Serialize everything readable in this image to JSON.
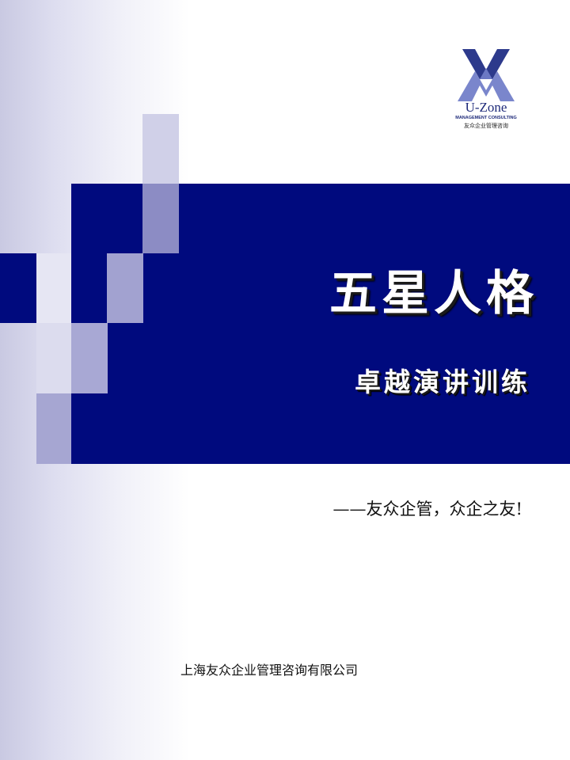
{
  "cover": {
    "title": "五星人格",
    "subtitle": "卓越演讲训练",
    "slogan": "——友众企管，众企之友!",
    "company": "上海友众企业管理咨询有限公司"
  },
  "logo": {
    "name": "U-Zone",
    "tagline": "MANAGEMENT CONSULTING",
    "chinese_name": "友众企业管理咨询"
  },
  "colors": {
    "band": "#000a7e",
    "light_block": "#d0d0e8",
    "mid_block": "#a2a2d0",
    "dark_block": "#8c8cc4",
    "text_white": "#ffffff",
    "logo_blue": "#1e2a7a"
  }
}
